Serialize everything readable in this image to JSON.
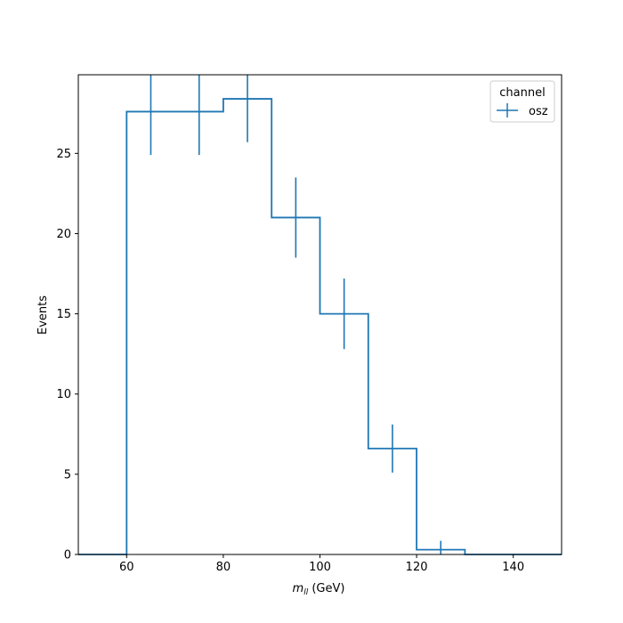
{
  "chart_data": {
    "type": "histogram-step",
    "xlabel_var": "m",
    "xlabel_sub": "ll",
    "xlabel_unit": " (GeV)",
    "ylabel": "Events",
    "xlim": [
      50,
      150
    ],
    "ylim": [
      0,
      29.9
    ],
    "xticks": [
      60,
      80,
      100,
      120,
      140
    ],
    "yticks": [
      0,
      5,
      10,
      15,
      20,
      25
    ],
    "bin_edges": [
      50,
      60,
      70,
      80,
      90,
      100,
      110,
      120,
      130,
      140,
      150
    ],
    "series": [
      {
        "name": "osz",
        "color": "#1f77b4",
        "values": [
          0,
          27.6,
          27.6,
          28.4,
          21.0,
          15.0,
          6.6,
          0.3,
          0,
          0
        ],
        "errors": [
          0,
          2.7,
          2.7,
          2.7,
          2.5,
          2.2,
          1.5,
          0.55,
          0,
          0
        ]
      }
    ],
    "legend": {
      "title": "channel",
      "position": "top-right"
    },
    "grid": false
  }
}
